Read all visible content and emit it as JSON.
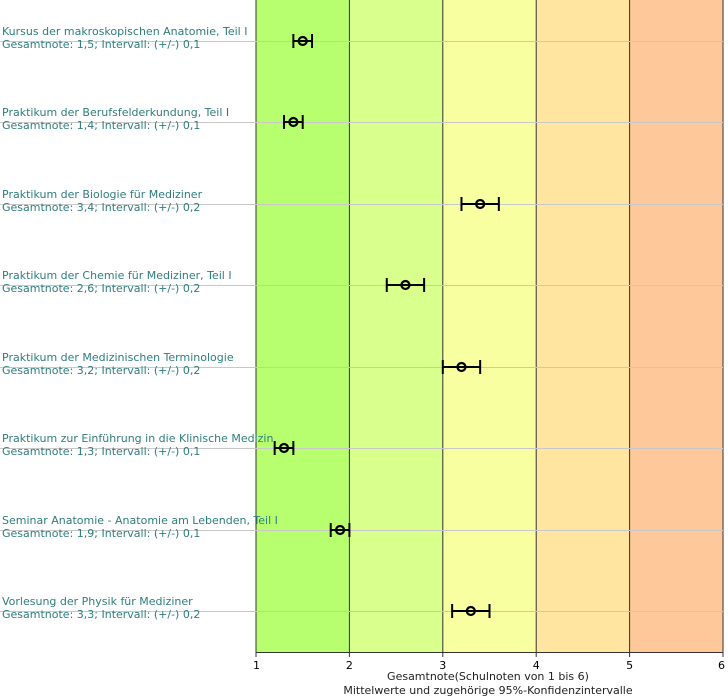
{
  "chart_data": {
    "type": "scatter",
    "orientation": "horizontal",
    "xlim": [
      1,
      6
    ],
    "x_ticks": [
      "1",
      "2",
      "3",
      "4",
      "5",
      "6"
    ],
    "xlabel": "Gesamtnote(Schulnoten von 1 bis 6)",
    "subtitle": "Mittelwerte und zugehörige 95%-Konfidenzintervalle",
    "grid": true,
    "bands": [
      {
        "from": 1,
        "to": 2,
        "color": "#b8ff70"
      },
      {
        "from": 2,
        "to": 3,
        "color": "#d9ff8c"
      },
      {
        "from": 3,
        "to": 4,
        "color": "#f8ffa0"
      },
      {
        "from": 4,
        "to": 5,
        "color": "#ffe5a0"
      },
      {
        "from": 5,
        "to": 6,
        "color": "#ffc89a"
      }
    ],
    "label_color": "#2e7d7d",
    "items": [
      {
        "name": "Kursus der makroskopischen Anatomie, Teil I",
        "detail": "Gesamtnote: 1,5;  Intervall: (+/-) 0,1",
        "value": 1.5,
        "ci": 0.1
      },
      {
        "name": "Praktikum der Berufsfelderkundung, Teil I",
        "detail": "Gesamtnote: 1,4;  Intervall: (+/-) 0,1",
        "value": 1.4,
        "ci": 0.1
      },
      {
        "name": "Praktikum der Biologie für Mediziner",
        "detail": "Gesamtnote: 3,4;  Intervall: (+/-) 0,2",
        "value": 3.4,
        "ci": 0.2
      },
      {
        "name": "Praktikum der Chemie für Mediziner, Teil I",
        "detail": "Gesamtnote: 2,6;  Intervall: (+/-) 0,2",
        "value": 2.6,
        "ci": 0.2
      },
      {
        "name": "Praktikum der Medizinischen Terminologie",
        "detail": "Gesamtnote: 3,2;  Intervall: (+/-) 0,2",
        "value": 3.2,
        "ci": 0.2
      },
      {
        "name": "Praktikum zur Einführung in die Klinische Medizin",
        "detail": "Gesamtnote: 1,3;  Intervall: (+/-) 0,1",
        "value": 1.3,
        "ci": 0.1
      },
      {
        "name": "Seminar Anatomie - Anatomie am Lebenden, Teil I",
        "detail": "Gesamtnote: 1,9;  Intervall: (+/-) 0,1",
        "value": 1.9,
        "ci": 0.1
      },
      {
        "name": "Vorlesung der Physik für Mediziner",
        "detail": "Gesamtnote: 3,3;  Intervall: (+/-) 0,2",
        "value": 3.3,
        "ci": 0.2
      }
    ]
  }
}
